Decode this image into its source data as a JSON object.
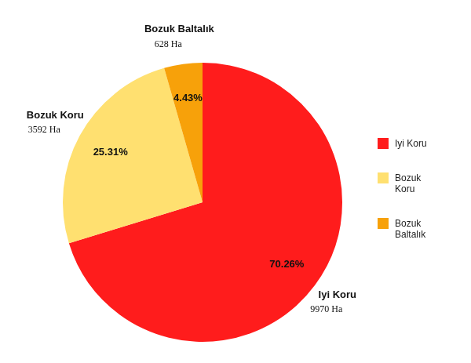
{
  "chart_data": {
    "type": "pie",
    "categories": [
      "Iyi Koru",
      "Bozuk Koru",
      "Bozuk Baltalık"
    ],
    "values": [
      70.26,
      25.31,
      4.43
    ],
    "value_labels": [
      "70.26%",
      "25.31%",
      "4.43%"
    ],
    "area_labels": [
      "9970 Ha",
      "3592 Ha",
      "628 Ha"
    ],
    "colors": [
      "#ff1c1c",
      "#ffe070",
      "#f7a10a"
    ],
    "data_labels": true,
    "legend": "right"
  }
}
